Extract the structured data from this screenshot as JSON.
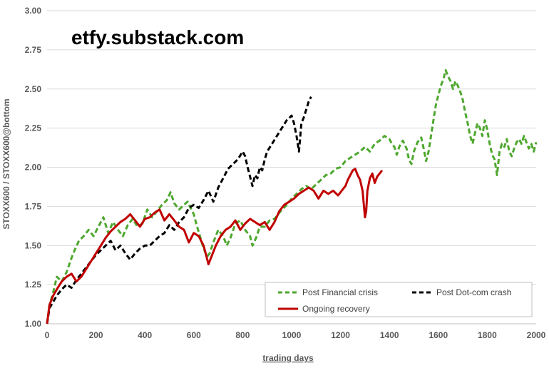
{
  "chart_data": {
    "type": "line",
    "title": "",
    "watermark": "etfy.substack.com",
    "xlabel": "trading days",
    "ylabel": "STOXX600 / STOXX600@bottom",
    "xlim": [
      0,
      2000
    ],
    "ylim": [
      1.0,
      3.0
    ],
    "x_ticks": [
      "0",
      "200",
      "400",
      "600",
      "800",
      "1000",
      "1200",
      "1400",
      "1600",
      "1800",
      "2000"
    ],
    "y_ticks": [
      "1.00",
      "1.25",
      "1.50",
      "1.75",
      "2.00",
      "2.25",
      "2.50",
      "2.75",
      "3.00"
    ],
    "grid": "horizontal",
    "legend_position": "bottom-right",
    "series": [
      {
        "name": "Post Financial crisis",
        "color": "#4ea72e",
        "style": "dashed",
        "points": [
          [
            0,
            1.0
          ],
          [
            10,
            1.12
          ],
          [
            25,
            1.2
          ],
          [
            40,
            1.3
          ],
          [
            60,
            1.27
          ],
          [
            80,
            1.33
          ],
          [
            100,
            1.42
          ],
          [
            110,
            1.46
          ],
          [
            130,
            1.53
          ],
          [
            150,
            1.56
          ],
          [
            170,
            1.6
          ],
          [
            190,
            1.56
          ],
          [
            210,
            1.62
          ],
          [
            230,
            1.68
          ],
          [
            250,
            1.58
          ],
          [
            270,
            1.65
          ],
          [
            290,
            1.6
          ],
          [
            310,
            1.56
          ],
          [
            330,
            1.63
          ],
          [
            350,
            1.67
          ],
          [
            370,
            1.62
          ],
          [
            390,
            1.64
          ],
          [
            410,
            1.73
          ],
          [
            430,
            1.68
          ],
          [
            450,
            1.72
          ],
          [
            470,
            1.76
          ],
          [
            490,
            1.79
          ],
          [
            505,
            1.84
          ],
          [
            520,
            1.77
          ],
          [
            540,
            1.73
          ],
          [
            560,
            1.76
          ],
          [
            575,
            1.78
          ],
          [
            590,
            1.73
          ],
          [
            600,
            1.7
          ],
          [
            610,
            1.64
          ],
          [
            625,
            1.56
          ],
          [
            640,
            1.48
          ],
          [
            655,
            1.43
          ],
          [
            665,
            1.45
          ],
          [
            680,
            1.52
          ],
          [
            700,
            1.6
          ],
          [
            720,
            1.56
          ],
          [
            735,
            1.5
          ],
          [
            750,
            1.55
          ],
          [
            770,
            1.64
          ],
          [
            790,
            1.66
          ],
          [
            810,
            1.6
          ],
          [
            830,
            1.56
          ],
          [
            840,
            1.5
          ],
          [
            855,
            1.55
          ],
          [
            870,
            1.62
          ],
          [
            890,
            1.62
          ],
          [
            910,
            1.66
          ],
          [
            930,
            1.67
          ],
          [
            950,
            1.71
          ],
          [
            980,
            1.76
          ],
          [
            1000,
            1.8
          ],
          [
            1020,
            1.83
          ],
          [
            1040,
            1.86
          ],
          [
            1060,
            1.88
          ],
          [
            1080,
            1.86
          ],
          [
            1100,
            1.89
          ],
          [
            1120,
            1.92
          ],
          [
            1140,
            1.95
          ],
          [
            1160,
            1.96
          ],
          [
            1180,
            1.99
          ],
          [
            1200,
            2.0
          ],
          [
            1220,
            2.04
          ],
          [
            1240,
            2.06
          ],
          [
            1260,
            2.08
          ],
          [
            1280,
            2.1
          ],
          [
            1300,
            2.13
          ],
          [
            1320,
            2.1
          ],
          [
            1340,
            2.15
          ],
          [
            1360,
            2.17
          ],
          [
            1380,
            2.2
          ],
          [
            1400,
            2.18
          ],
          [
            1410,
            2.15
          ],
          [
            1420,
            2.13
          ],
          [
            1430,
            2.08
          ],
          [
            1440,
            2.13
          ],
          [
            1455,
            2.17
          ],
          [
            1470,
            2.12
          ],
          [
            1480,
            2.05
          ],
          [
            1490,
            2.02
          ],
          [
            1500,
            2.1
          ],
          [
            1515,
            2.16
          ],
          [
            1530,
            2.19
          ],
          [
            1540,
            2.12
          ],
          [
            1550,
            2.04
          ],
          [
            1560,
            2.1
          ],
          [
            1570,
            2.2
          ],
          [
            1580,
            2.3
          ],
          [
            1590,
            2.4
          ],
          [
            1600,
            2.46
          ],
          [
            1610,
            2.52
          ],
          [
            1620,
            2.56
          ],
          [
            1630,
            2.62
          ],
          [
            1640,
            2.58
          ],
          [
            1650,
            2.55
          ],
          [
            1660,
            2.5
          ],
          [
            1670,
            2.55
          ],
          [
            1680,
            2.52
          ],
          [
            1690,
            2.48
          ],
          [
            1700,
            2.43
          ],
          [
            1710,
            2.35
          ],
          [
            1720,
            2.28
          ],
          [
            1730,
            2.2
          ],
          [
            1740,
            2.15
          ],
          [
            1750,
            2.22
          ],
          [
            1760,
            2.28
          ],
          [
            1770,
            2.25
          ],
          [
            1780,
            2.2
          ],
          [
            1790,
            2.3
          ],
          [
            1800,
            2.24
          ],
          [
            1810,
            2.15
          ],
          [
            1820,
            2.08
          ],
          [
            1830,
            2.05
          ],
          [
            1840,
            1.95
          ],
          [
            1850,
            2.1
          ],
          [
            1860,
            2.15
          ],
          [
            1870,
            2.13
          ],
          [
            1880,
            2.18
          ],
          [
            1890,
            2.1
          ],
          [
            1900,
            2.07
          ],
          [
            1910,
            2.12
          ],
          [
            1920,
            2.16
          ],
          [
            1930,
            2.18
          ],
          [
            1940,
            2.15
          ],
          [
            1950,
            2.2
          ],
          [
            1960,
            2.16
          ],
          [
            1970,
            2.12
          ],
          [
            1980,
            2.15
          ],
          [
            1990,
            2.1
          ],
          [
            2000,
            2.16
          ]
        ]
      },
      {
        "name": "Post Dot-com crash",
        "color": "#000000",
        "style": "dashed",
        "points": [
          [
            0,
            1.0
          ],
          [
            10,
            1.1
          ],
          [
            25,
            1.14
          ],
          [
            40,
            1.18
          ],
          [
            60,
            1.22
          ],
          [
            80,
            1.25
          ],
          [
            100,
            1.23
          ],
          [
            120,
            1.28
          ],
          [
            140,
            1.32
          ],
          [
            160,
            1.36
          ],
          [
            180,
            1.4
          ],
          [
            200,
            1.44
          ],
          [
            220,
            1.47
          ],
          [
            240,
            1.5
          ],
          [
            260,
            1.53
          ],
          [
            280,
            1.47
          ],
          [
            300,
            1.5
          ],
          [
            320,
            1.45
          ],
          [
            340,
            1.41
          ],
          [
            360,
            1.45
          ],
          [
            380,
            1.48
          ],
          [
            400,
            1.5
          ],
          [
            420,
            1.5
          ],
          [
            440,
            1.53
          ],
          [
            460,
            1.56
          ],
          [
            480,
            1.58
          ],
          [
            500,
            1.63
          ],
          [
            520,
            1.6
          ],
          [
            540,
            1.65
          ],
          [
            560,
            1.68
          ],
          [
            580,
            1.74
          ],
          [
            600,
            1.76
          ],
          [
            620,
            1.74
          ],
          [
            640,
            1.79
          ],
          [
            660,
            1.85
          ],
          [
            680,
            1.78
          ],
          [
            700,
            1.87
          ],
          [
            720,
            1.93
          ],
          [
            740,
            1.99
          ],
          [
            760,
            2.02
          ],
          [
            780,
            2.05
          ],
          [
            800,
            2.1
          ],
          [
            810,
            2.07
          ],
          [
            820,
            2.0
          ],
          [
            830,
            1.94
          ],
          [
            840,
            1.88
          ],
          [
            850,
            1.95
          ],
          [
            860,
            1.93
          ],
          [
            870,
            2.0
          ],
          [
            880,
            1.98
          ],
          [
            890,
            2.05
          ],
          [
            900,
            2.1
          ],
          [
            920,
            2.15
          ],
          [
            940,
            2.2
          ],
          [
            960,
            2.25
          ],
          [
            980,
            2.3
          ],
          [
            1000,
            2.33
          ],
          [
            1010,
            2.28
          ],
          [
            1020,
            2.2
          ],
          [
            1030,
            2.1
          ],
          [
            1040,
            2.28
          ],
          [
            1050,
            2.32
          ],
          [
            1060,
            2.37
          ],
          [
            1070,
            2.42
          ],
          [
            1080,
            2.45
          ]
        ]
      },
      {
        "name": "Ongoing recovery",
        "color": "#c00000",
        "style": "solid",
        "points": [
          [
            0,
            1.0
          ],
          [
            10,
            1.12
          ],
          [
            25,
            1.18
          ],
          [
            40,
            1.22
          ],
          [
            60,
            1.27
          ],
          [
            80,
            1.3
          ],
          [
            100,
            1.32
          ],
          [
            120,
            1.27
          ],
          [
            140,
            1.3
          ],
          [
            160,
            1.35
          ],
          [
            180,
            1.4
          ],
          [
            200,
            1.45
          ],
          [
            220,
            1.5
          ],
          [
            240,
            1.55
          ],
          [
            260,
            1.59
          ],
          [
            280,
            1.62
          ],
          [
            300,
            1.65
          ],
          [
            320,
            1.67
          ],
          [
            340,
            1.7
          ],
          [
            360,
            1.66
          ],
          [
            380,
            1.62
          ],
          [
            400,
            1.67
          ],
          [
            420,
            1.68
          ],
          [
            440,
            1.71
          ],
          [
            460,
            1.73
          ],
          [
            480,
            1.66
          ],
          [
            500,
            1.7
          ],
          [
            520,
            1.66
          ],
          [
            540,
            1.62
          ],
          [
            560,
            1.6
          ],
          [
            580,
            1.52
          ],
          [
            600,
            1.58
          ],
          [
            620,
            1.56
          ],
          [
            640,
            1.5
          ],
          [
            650,
            1.44
          ],
          [
            660,
            1.38
          ],
          [
            670,
            1.42
          ],
          [
            690,
            1.5
          ],
          [
            710,
            1.56
          ],
          [
            730,
            1.6
          ],
          [
            750,
            1.62
          ],
          [
            770,
            1.66
          ],
          [
            790,
            1.6
          ],
          [
            810,
            1.64
          ],
          [
            830,
            1.67
          ],
          [
            850,
            1.65
          ],
          [
            870,
            1.63
          ],
          [
            890,
            1.65
          ],
          [
            910,
            1.6
          ],
          [
            930,
            1.65
          ],
          [
            950,
            1.72
          ],
          [
            970,
            1.76
          ],
          [
            990,
            1.78
          ],
          [
            1010,
            1.8
          ],
          [
            1030,
            1.83
          ],
          [
            1050,
            1.85
          ],
          [
            1070,
            1.87
          ],
          [
            1090,
            1.85
          ],
          [
            1110,
            1.8
          ],
          [
            1130,
            1.85
          ],
          [
            1150,
            1.83
          ],
          [
            1170,
            1.85
          ],
          [
            1190,
            1.82
          ],
          [
            1210,
            1.86
          ],
          [
            1220,
            1.88
          ],
          [
            1230,
            1.92
          ],
          [
            1240,
            1.95
          ],
          [
            1250,
            1.98
          ],
          [
            1260,
            1.99
          ],
          [
            1270,
            1.95
          ],
          [
            1280,
            1.92
          ],
          [
            1290,
            1.85
          ],
          [
            1300,
            1.68
          ],
          [
            1305,
            1.72
          ],
          [
            1310,
            1.85
          ],
          [
            1320,
            1.93
          ],
          [
            1330,
            1.96
          ],
          [
            1340,
            1.9
          ],
          [
            1350,
            1.94
          ],
          [
            1365,
            1.97
          ],
          [
            1370,
            1.98
          ]
        ]
      }
    ]
  }
}
